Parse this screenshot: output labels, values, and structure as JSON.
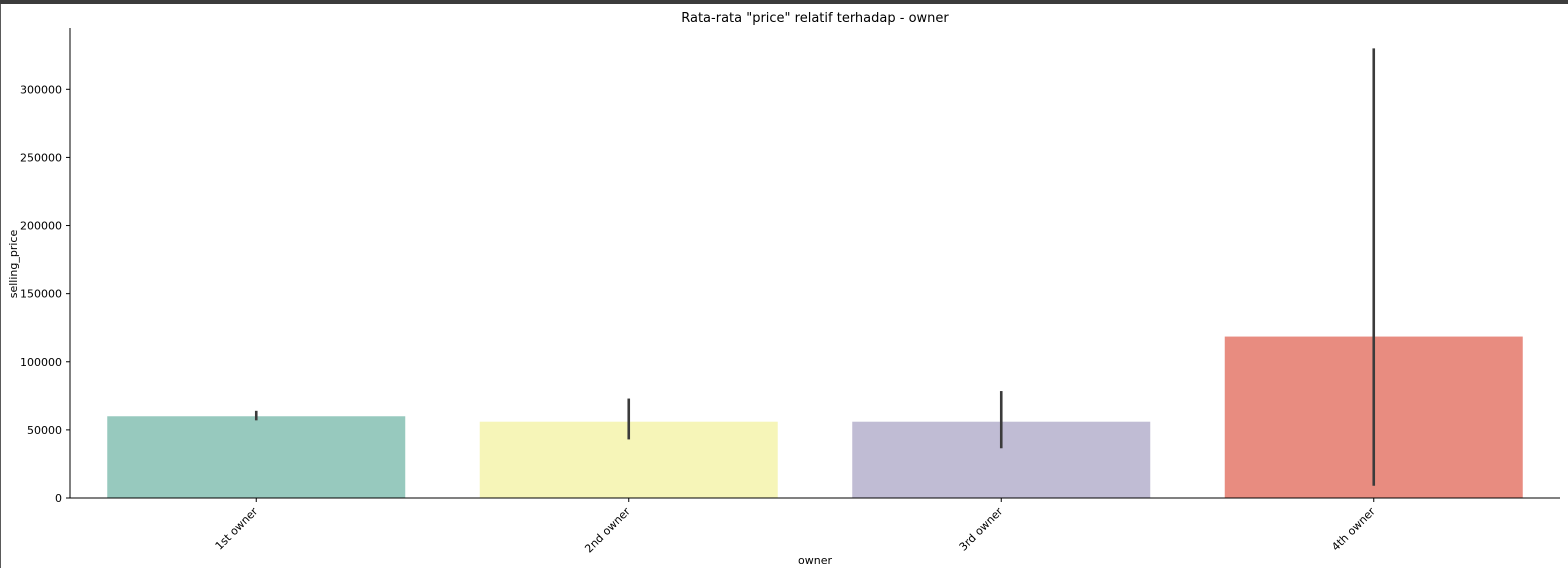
{
  "chart_data": {
    "type": "bar",
    "title": "Rata-rata \"price\" relatif terhadap - owner",
    "xlabel": "owner",
    "ylabel": "selling_price",
    "categories": [
      "1st owner",
      "2nd owner",
      "3rd owner",
      "4th owner"
    ],
    "values": [
      60000,
      56000,
      56000,
      118500
    ],
    "error_bars": [
      [
        57000,
        64000
      ],
      [
        43000,
        73000
      ],
      [
        36500,
        78500
      ],
      [
        9000,
        330000
      ]
    ],
    "colors": [
      "#97c9be",
      "#f6f5b8",
      "#c0bcd4",
      "#e88c80"
    ],
    "ylim": [
      0,
      345000
    ],
    "yticks": [
      0,
      50000,
      100000,
      150000,
      200000,
      250000,
      300000
    ],
    "grid": false,
    "legend": "none"
  }
}
